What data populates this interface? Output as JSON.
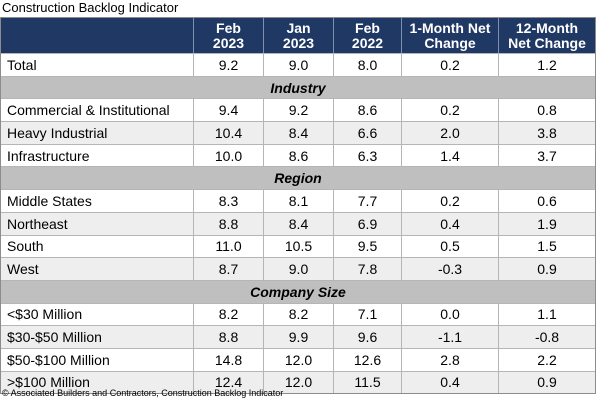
{
  "title": "Construction Backlog Indicator",
  "table": {
    "columns": [
      "Feb\n2023",
      "Jan\n2023",
      "Feb\n2022",
      "1-Month Net\nChange",
      "12-Month\nNet Change"
    ],
    "total": {
      "label": "Total",
      "values": [
        "9.2",
        "9.0",
        "8.0",
        "0.2",
        "1.2"
      ]
    },
    "sections": [
      {
        "name": "Industry",
        "rows": [
          {
            "label": "Commercial & Institutional",
            "values": [
              "9.4",
              "9.2",
              "8.6",
              "0.2",
              "0.8"
            ]
          },
          {
            "label": "Heavy Industrial",
            "values": [
              "10.4",
              "8.4",
              "6.6",
              "2.0",
              "3.8"
            ]
          },
          {
            "label": "Infrastructure",
            "values": [
              "10.0",
              "8.6",
              "6.3",
              "1.4",
              "3.7"
            ]
          }
        ]
      },
      {
        "name": "Region",
        "rows": [
          {
            "label": "Middle States",
            "values": [
              "8.3",
              "8.1",
              "7.7",
              "0.2",
              "0.6"
            ]
          },
          {
            "label": "Northeast",
            "values": [
              "8.8",
              "8.4",
              "6.9",
              "0.4",
              "1.9"
            ]
          },
          {
            "label": "South",
            "values": [
              "11.0",
              "10.5",
              "9.5",
              "0.5",
              "1.5"
            ]
          },
          {
            "label": "West",
            "values": [
              "8.7",
              "9.0",
              "7.8",
              "-0.3",
              "0.9"
            ]
          }
        ]
      },
      {
        "name": "Company Size",
        "rows": [
          {
            "label": "<$30 Million",
            "values": [
              "8.2",
              "8.2",
              "7.1",
              "0.0",
              "1.1"
            ]
          },
          {
            "label": "$30-$50 Million",
            "values": [
              "8.8",
              "9.9",
              "9.6",
              "-1.1",
              "-0.8"
            ]
          },
          {
            "label": "$50-$100 Million",
            "values": [
              "14.8",
              "12.0",
              "12.6",
              "2.8",
              "2.2"
            ]
          },
          {
            "label": ">$100 Million",
            "values": [
              "12.4",
              "12.0",
              "11.5",
              "0.4",
              "0.9"
            ]
          }
        ]
      }
    ]
  },
  "footer": "© Associated Builders and Contractors, Construction Backlog Indicator"
}
